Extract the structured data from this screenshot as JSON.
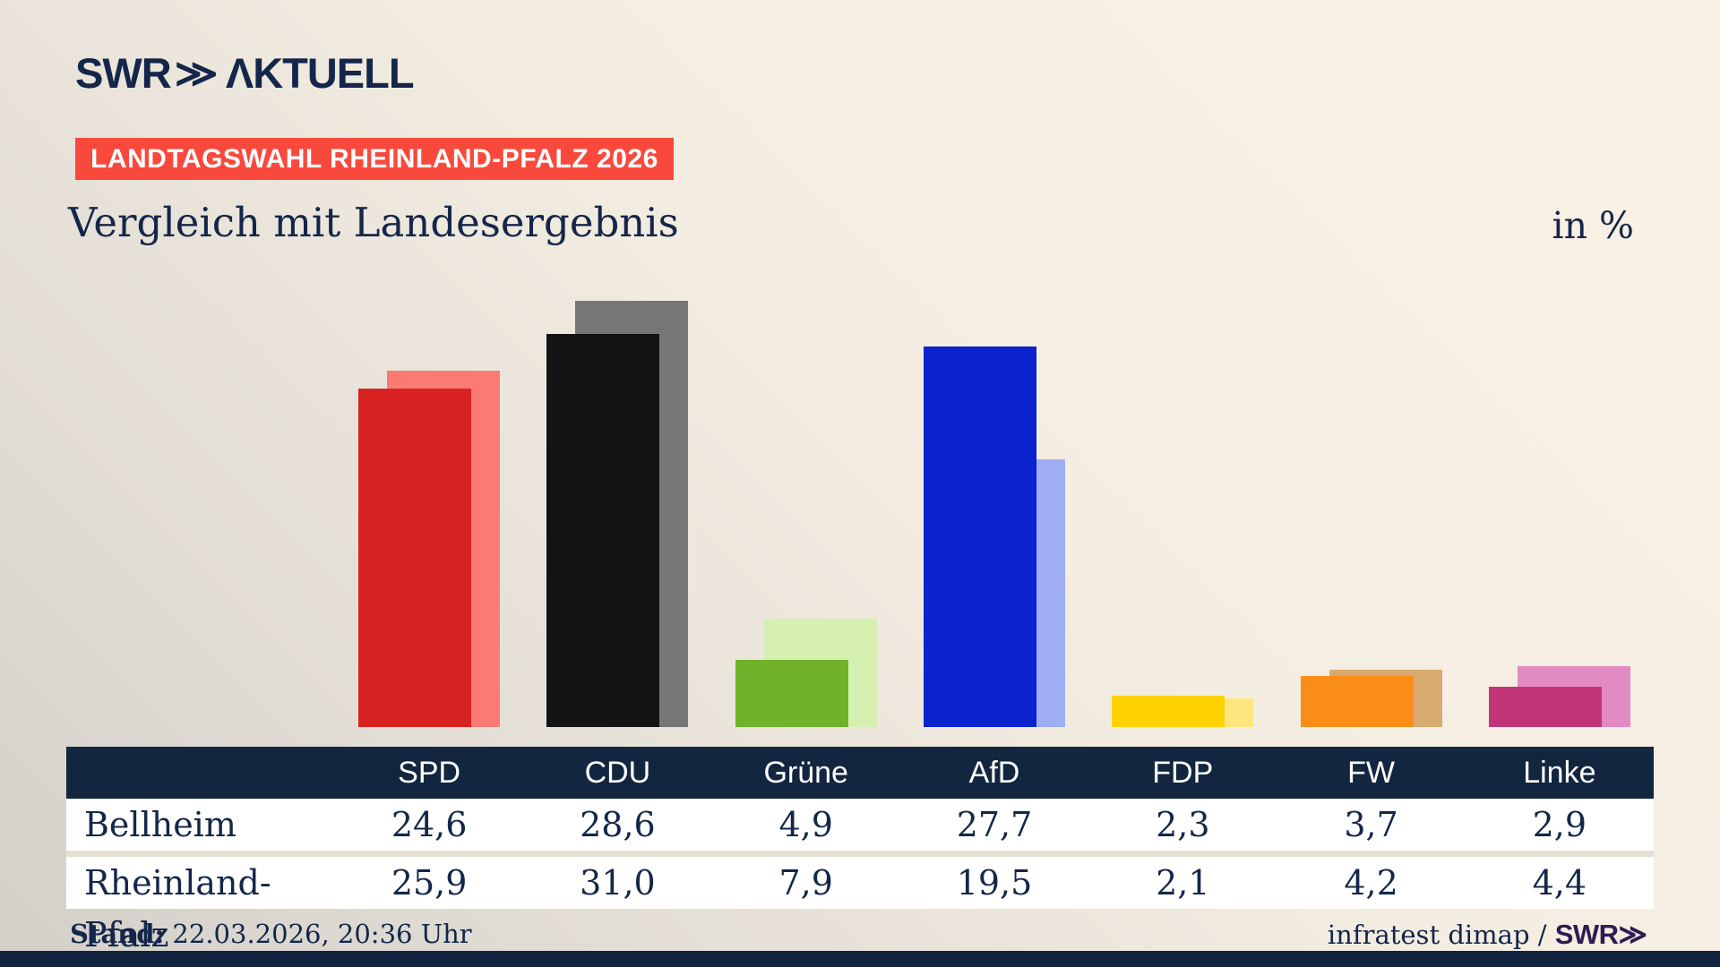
{
  "brand": {
    "logo_swr": "SWR",
    "logo_chevron": "≫",
    "logo_suffix": "ΛKTUELL"
  },
  "badge": "LANDTAGSWAHL RHEINLAND-PFALZ 2026",
  "title": "Vergleich mit Landesergebnis",
  "unit_label": "in %",
  "chart_data": {
    "type": "bar",
    "categories": [
      "SPD",
      "CDU",
      "Grüne",
      "AfD",
      "FDP",
      "FW",
      "Linke"
    ],
    "series": [
      {
        "name": "Bellheim",
        "values": [
          24.6,
          28.6,
          4.9,
          27.7,
          2.3,
          3.7,
          2.9
        ]
      },
      {
        "name": "Rheinland-Pfalz",
        "values": [
          25.9,
          31.0,
          7.9,
          19.5,
          2.1,
          4.2,
          4.4
        ]
      }
    ],
    "front_colors": [
      "#d82121",
      "#131313",
      "#70b22a",
      "#0a23cc",
      "#ffd200",
      "#fa8d18",
      "#c23478"
    ],
    "back_colors": [
      "#fb7a74",
      "#767676",
      "#d6f0b2",
      "#9fadf4",
      "#ffe57e",
      "#d9aa70",
      "#e28ac2"
    ],
    "title": "Vergleich mit Landesergebnis",
    "xlabel": "",
    "ylabel": "in %",
    "ylim": [
      0,
      31
    ],
    "grid": false,
    "legend_position": "none"
  },
  "table": {
    "header": [
      "",
      "SPD",
      "CDU",
      "Grüne",
      "AfD",
      "FDP",
      "FW",
      "Linke"
    ],
    "rows": [
      {
        "label": "Bellheim",
        "values": [
          "24,6",
          "28,6",
          "4,9",
          "27,7",
          "2,3",
          "3,7",
          "2,9"
        ]
      },
      {
        "label": "Rheinland-Pfalz",
        "values": [
          "25,9",
          "31,0",
          "7,9",
          "19,5",
          "2,1",
          "4,2",
          "4,4"
        ]
      }
    ]
  },
  "footer": {
    "stand_label": "Stand:",
    "stand_value": "22.03.2026, 20:36 Uhr",
    "source_text": "infratest dimap / ",
    "source_logo": "SWR",
    "source_logo_chevron": "≫"
  },
  "colors": {
    "accent_red": "#f8493c",
    "navy": "#14264a",
    "table_header": "#132640",
    "source_logo_purple": "#311a52"
  }
}
